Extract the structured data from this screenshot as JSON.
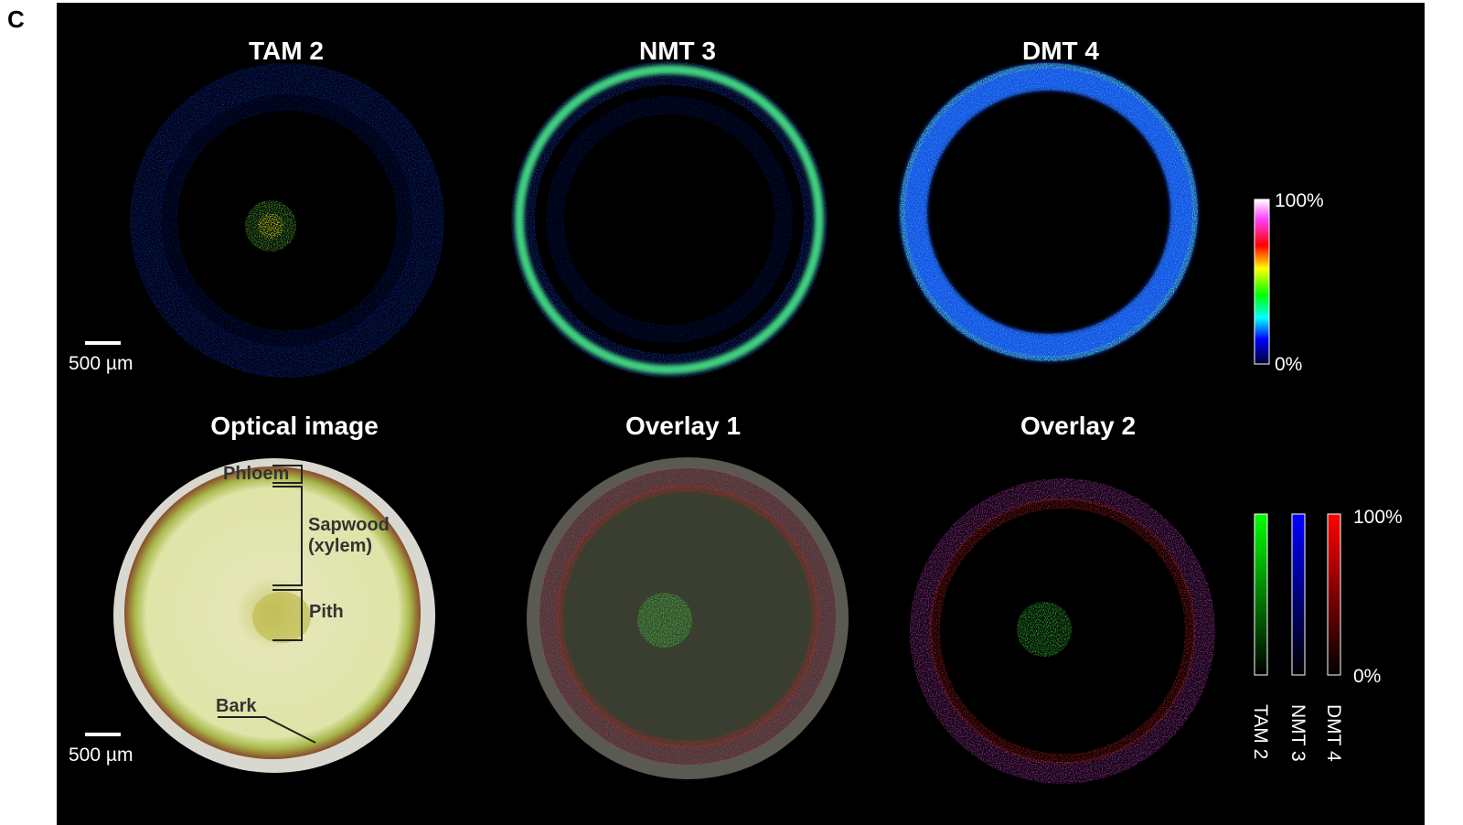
{
  "panel_label": "C",
  "top_row": [
    {
      "title": "TAM 2"
    },
    {
      "title": "NMT 3"
    },
    {
      "title": "DMT 4"
    }
  ],
  "bottom_row": [
    {
      "title": "Optical image"
    },
    {
      "title": "Overlay 1"
    },
    {
      "title": "Overlay 2"
    }
  ],
  "scale_bars": [
    "500 µm",
    "500 µm"
  ],
  "annotations": {
    "phloem": "Phloem",
    "sapwood": [
      "Sapwood",
      "(xylem)"
    ],
    "pith": "Pith",
    "bark": "Bark"
  },
  "heatmap_colorbar": {
    "max_label": "100%",
    "min_label": "0%"
  },
  "channel_colorbar": {
    "max_label": "100%",
    "min_label": "0%",
    "channels": [
      "TAM 2",
      "NMT 3",
      "DMT 4"
    ]
  }
}
